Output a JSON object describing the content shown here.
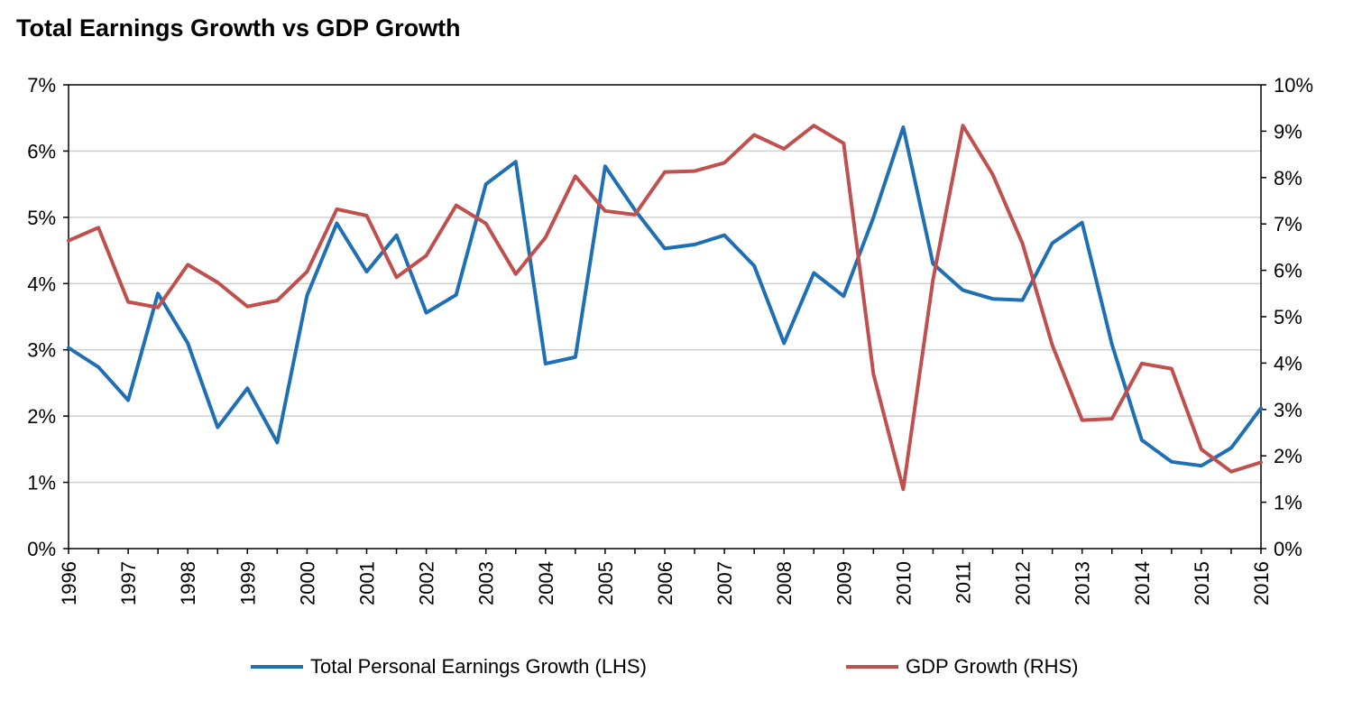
{
  "chart_data": {
    "type": "line",
    "title": "Total Earnings Growth vs GDP Growth",
    "x": [
      1996,
      1996.5,
      1997,
      1997.5,
      1998,
      1998.5,
      1999,
      1999.5,
      2000,
      2000.5,
      2001,
      2001.5,
      2002,
      2002.5,
      2003,
      2003.5,
      2004,
      2004.5,
      2005,
      2005.5,
      2006,
      2006.5,
      2007,
      2007.5,
      2008,
      2008.5,
      2009,
      2009.5,
      2010,
      2010.5,
      2011,
      2011.5,
      2012,
      2012.5,
      2013,
      2013.5,
      2014,
      2014.5,
      2015,
      2015.5,
      2016
    ],
    "x_tick_labels": [
      "1996",
      "1997",
      "1998",
      "1999",
      "2000",
      "2001",
      "2002",
      "2003",
      "2004",
      "2005",
      "2006",
      "2007",
      "2008",
      "2009",
      "2010",
      "2011",
      "2012",
      "2013",
      "2014",
      "2015",
      "2016"
    ],
    "y_left": {
      "ticks": [
        "0%",
        "1%",
        "2%",
        "3%",
        "4%",
        "5%",
        "6%",
        "7%"
      ],
      "ylim": [
        0,
        7
      ]
    },
    "y_right": {
      "ticks": [
        "0%",
        "1%",
        "2%",
        "3%",
        "4%",
        "5%",
        "6%",
        "7%",
        "8%",
        "9%",
        "10%"
      ],
      "ylim": [
        0,
        10
      ]
    },
    "grid": "horizontal",
    "legend_position": "bottom",
    "series": [
      {
        "name": "Total Personal Earnings Growth (LHS)",
        "axis": "left",
        "color": "#1f6fb4",
        "values": [
          3.03,
          2.74,
          2.24,
          3.85,
          3.1,
          1.83,
          2.42,
          1.6,
          3.82,
          4.91,
          4.18,
          4.73,
          3.56,
          3.83,
          5.5,
          5.84,
          2.79,
          2.89,
          5.77,
          5.11,
          4.53,
          4.59,
          4.73,
          4.27,
          3.1,
          4.16,
          3.81,
          5.0,
          6.36,
          4.3,
          3.9,
          3.77,
          3.75,
          4.61,
          4.92,
          3.08,
          1.64,
          1.31,
          1.25,
          1.52,
          2.12
        ]
      },
      {
        "name": "GDP Growth (RHS)",
        "axis": "right",
        "color": "#c0504d",
        "values": [
          6.64,
          6.92,
          5.32,
          5.2,
          6.12,
          5.74,
          5.22,
          5.35,
          5.97,
          7.32,
          7.18,
          5.85,
          6.32,
          7.4,
          7.01,
          5.92,
          6.71,
          8.03,
          7.28,
          7.2,
          8.12,
          8.14,
          8.32,
          8.92,
          8.62,
          9.12,
          8.74,
          3.76,
          1.28,
          5.8,
          9.12,
          8.07,
          6.58,
          4.39,
          2.77,
          2.8,
          3.99,
          3.88,
          2.14,
          1.66,
          1.86
        ]
      }
    ]
  }
}
